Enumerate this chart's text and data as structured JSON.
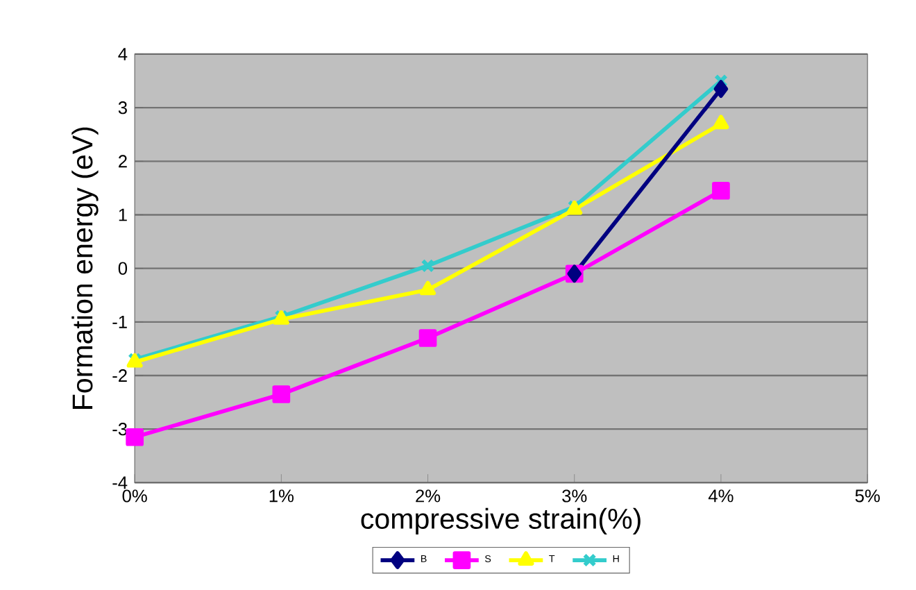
{
  "chart_data": {
    "type": "line",
    "xlabel": "compressive strain(%)",
    "ylabel": "Formation  energy (eV)",
    "x": [
      0,
      1,
      2,
      3,
      4
    ],
    "xlim": [
      0,
      5
    ],
    "xticks": [
      {
        "value": 0,
        "label": "0%"
      },
      {
        "value": 1,
        "label": "1%"
      },
      {
        "value": 2,
        "label": "2%"
      },
      {
        "value": 3,
        "label": "3%"
      },
      {
        "value": 4,
        "label": "4%"
      },
      {
        "value": 5,
        "label": "5%"
      }
    ],
    "ylim": [
      -4,
      4
    ],
    "yticks": [
      -4,
      -3,
      -2,
      -1,
      0,
      1,
      2,
      3,
      4
    ],
    "grid": "y",
    "legend": "bottom",
    "series": [
      {
        "name": "B",
        "color": "#000080",
        "marker": "diamond",
        "values": [
          null,
          null,
          null,
          -0.1,
          3.35
        ]
      },
      {
        "name": "S",
        "color": "#ff00ff",
        "marker": "square",
        "values": [
          -3.15,
          -2.35,
          -1.3,
          -0.1,
          1.45
        ]
      },
      {
        "name": "T",
        "color": "#ffff00",
        "marker": "triangle",
        "values": [
          -1.75,
          -0.95,
          -0.4,
          1.1,
          2.7
        ]
      },
      {
        "name": "H",
        "color": "#33cccc",
        "marker": "cross",
        "values": [
          -1.7,
          -0.9,
          0.05,
          1.15,
          3.5
        ]
      }
    ]
  }
}
